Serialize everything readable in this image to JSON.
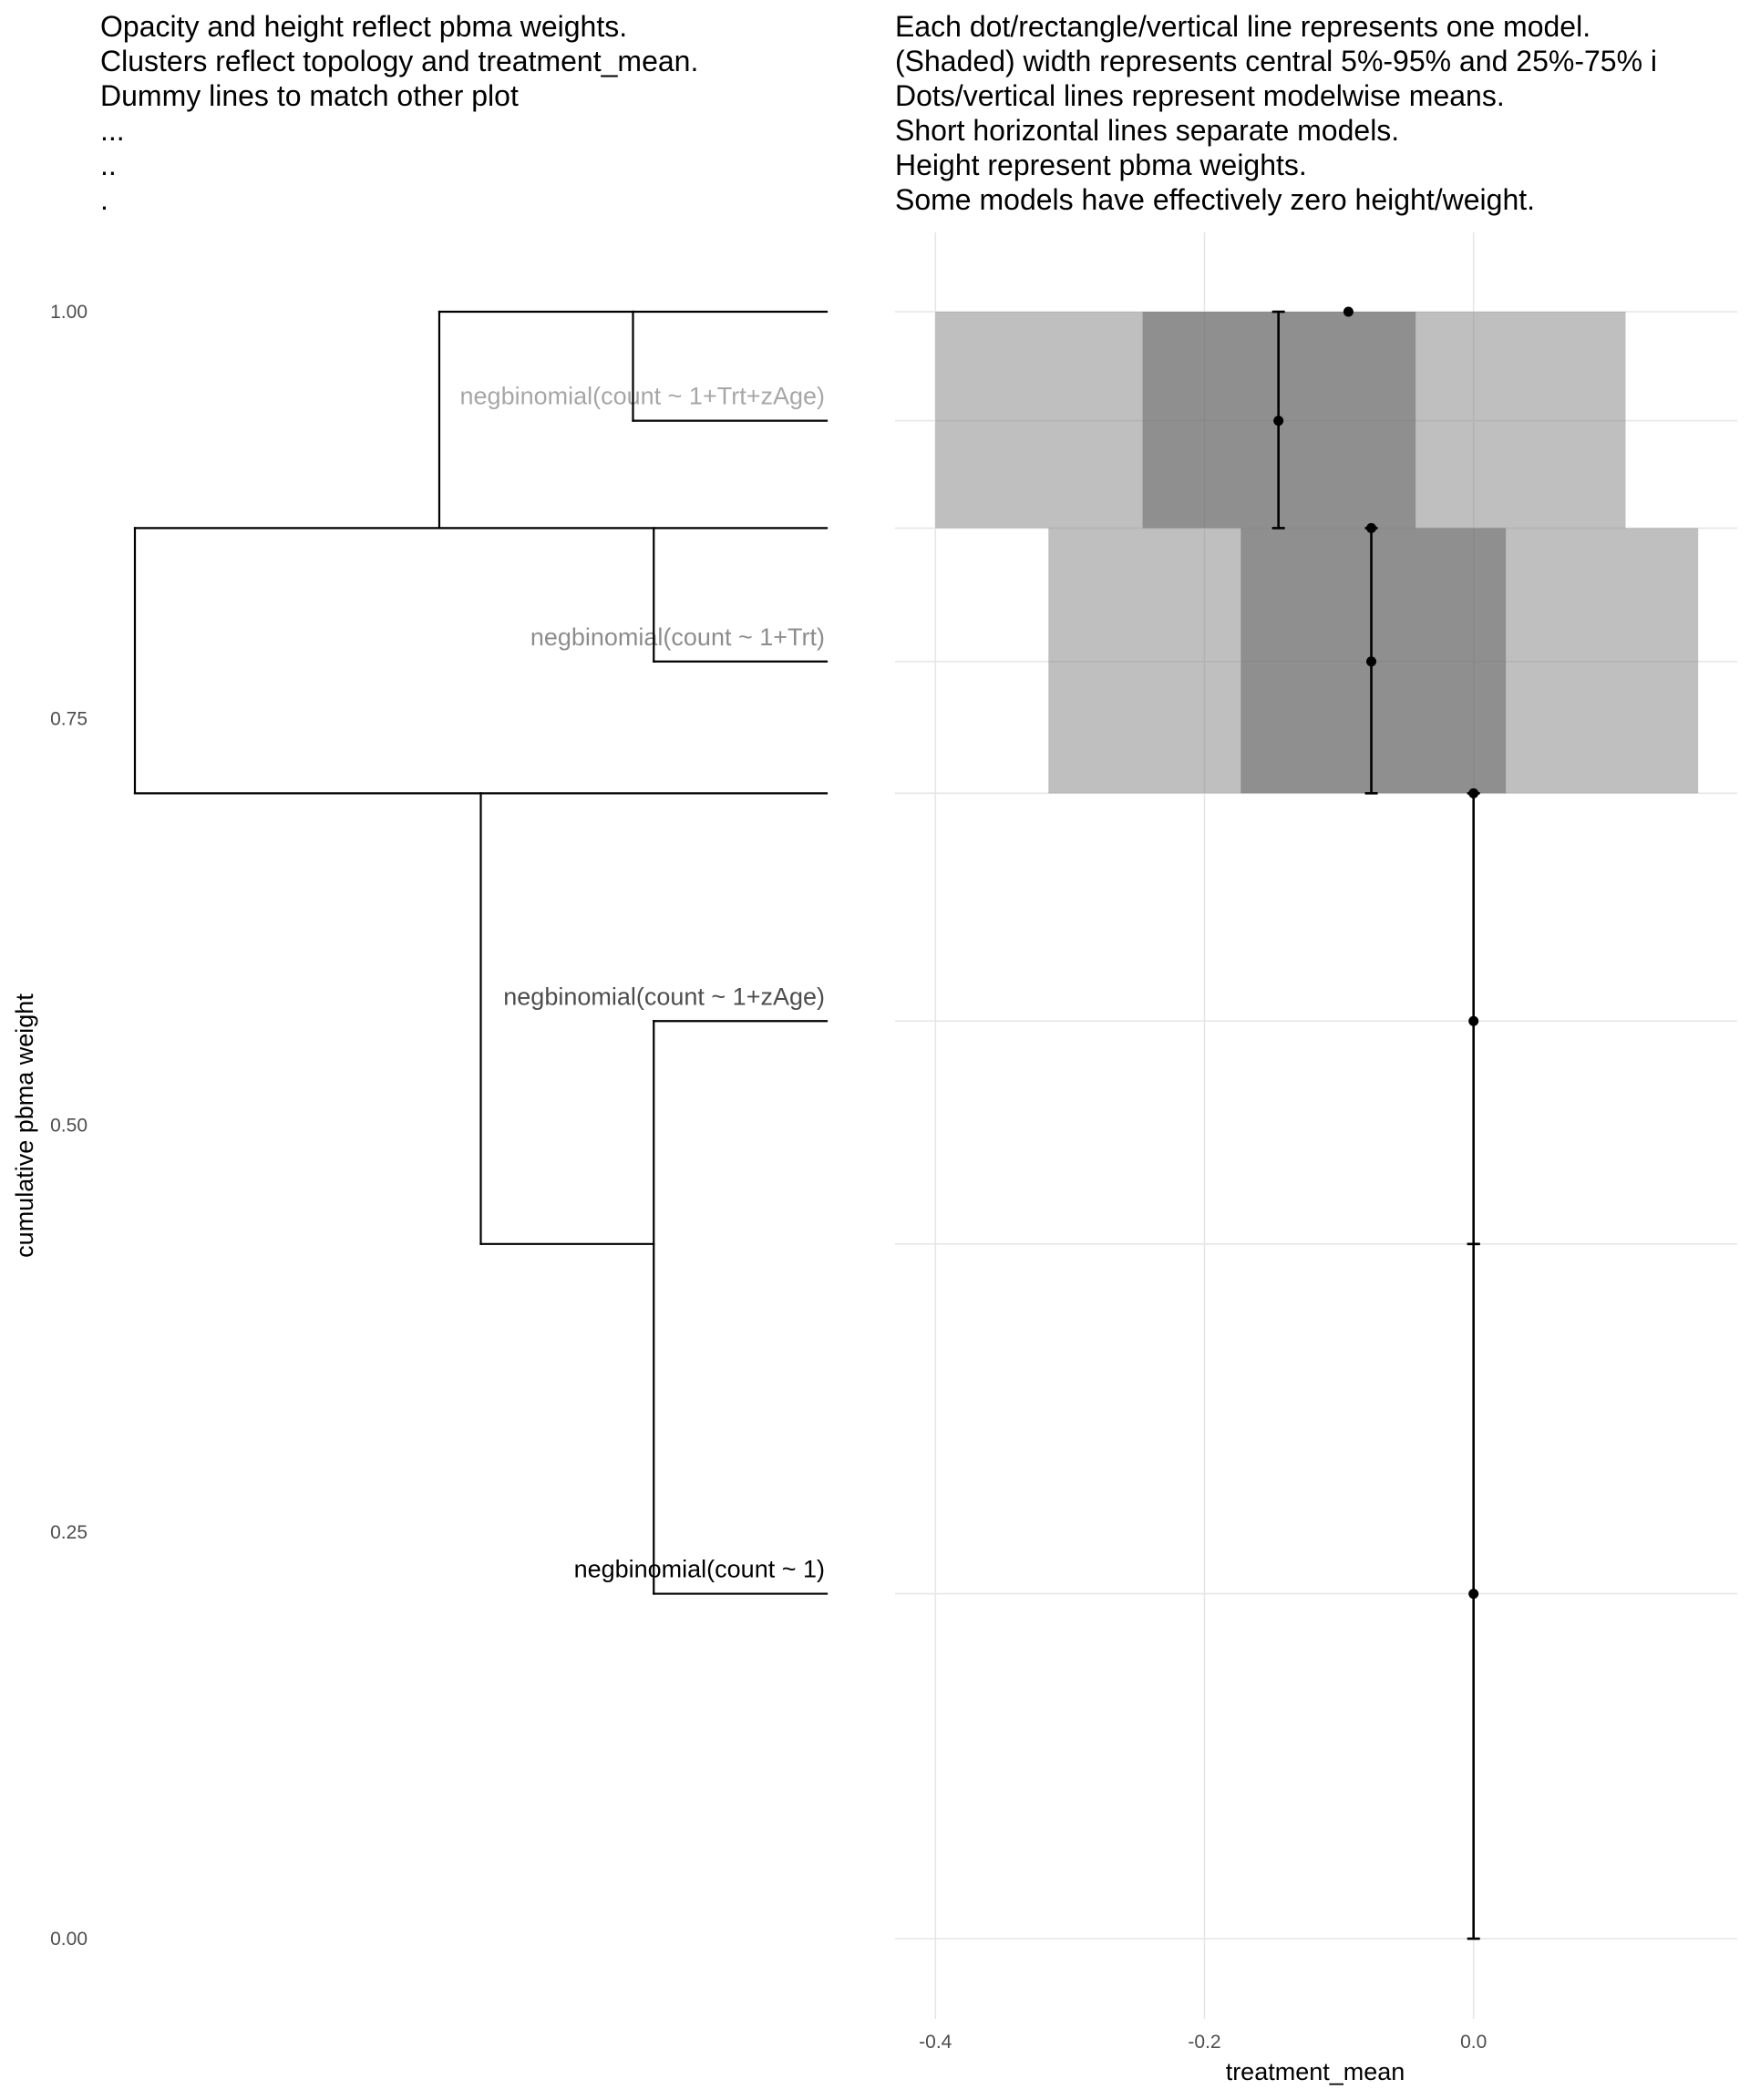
{
  "chart_data": [
    {
      "type": "dendrogram",
      "subtitle_lines": [
        "Opacity and height reflect pbma weights.",
        "Clusters reflect topology and treatment_mean.",
        "Dummy lines to match other plot",
        "...",
        "..",
        "."
      ],
      "ylabel": "cumulative pbma weight",
      "ylim": [
        0,
        1
      ],
      "yticks": [
        {
          "value": 0.0,
          "label": "0.00"
        },
        {
          "value": 0.25,
          "label": "0.25"
        },
        {
          "value": 0.5,
          "label": "0.50"
        },
        {
          "value": 0.75,
          "label": "0.75"
        },
        {
          "value": 1.0,
          "label": "1.00"
        }
      ],
      "leaves": [
        {
          "label": "negbinomial(count ~ 1+Trt+zAge)",
          "y": 0.933,
          "opacity": 0.35
        },
        {
          "label": "negbinomial(count ~ 1+Trt)",
          "y": 0.785,
          "opacity": 0.45
        },
        {
          "label": "negbinomial(count ~ 1+zAge)",
          "y": 0.564,
          "opacity": 0.7
        },
        {
          "label": "negbinomial(count ~ 1)",
          "y": 0.212,
          "opacity": 1.0
        }
      ],
      "links": [
        {
          "depth_from": 0.28,
          "depth_to": 0.0,
          "y": 1.0
        },
        {
          "depth_from": 0.28,
          "depth_to": 0.0,
          "y": 0.933
        },
        {
          "depth_from": 0.28,
          "depth_to": 0.28,
          "y_from": 0.933,
          "y_to": 1.0
        },
        {
          "depth_from": 0.56,
          "depth_to": 0.28,
          "y": 1.0
        },
        {
          "depth_from": 0.56,
          "depth_to": 0.0,
          "y": 0.867
        },
        {
          "depth_from": 0.25,
          "depth_to": 0.0,
          "y": 0.785
        },
        {
          "depth_from": 0.25,
          "depth_to": 0.25,
          "y_from": 0.785,
          "y_to": 0.867
        },
        {
          "depth_from": 0.56,
          "depth_to": 0.56,
          "y_from": 0.867,
          "y_to": 1.0
        },
        {
          "depth_from": 1.0,
          "depth_to": 0.56,
          "y": 0.867
        },
        {
          "depth_from": 1.0,
          "depth_to": 0.0,
          "y": 0.704
        },
        {
          "depth_from": 1.0,
          "depth_to": 1.0,
          "y_from": 0.704,
          "y_to": 0.867
        },
        {
          "depth_from": 0.5,
          "depth_to": 0.5,
          "y_from": 0.427,
          "y_to": 0.704
        },
        {
          "depth_from": 0.5,
          "depth_to": 0.25,
          "y": 0.427
        },
        {
          "depth_from": 0.25,
          "depth_to": 0.25,
          "y_from": 0.212,
          "y_to": 0.564
        },
        {
          "depth_from": 0.25,
          "depth_to": 0.0,
          "y": 0.564
        },
        {
          "depth_from": 0.25,
          "depth_to": 0.0,
          "y": 0.212
        }
      ]
    },
    {
      "type": "interval",
      "subtitle_lines": [
        "Each dot/rectangle/vertical line represents one model.",
        "(Shaded) width represents central 5%-95% and 25%-75% i",
        "Dots/vertical lines represent modelwise means.",
        "Short horizontal lines separate models.",
        "Height represent pbma weights.",
        "Some models have effectively zero height/weight."
      ],
      "xlabel": "treatment_mean",
      "xlim": [
        -0.43,
        0.196
      ],
      "ylim": [
        0,
        1
      ],
      "xticks": [
        {
          "value": -0.4,
          "label": "-0.4"
        },
        {
          "value": -0.2,
          "label": "-0.2"
        },
        {
          "value": 0.0,
          "label": "0.0"
        }
      ],
      "gridlines_y": [
        0.0,
        0.212,
        0.427,
        0.564,
        0.704,
        0.785,
        0.867,
        0.933,
        1.0
      ],
      "models": [
        {
          "y_lo": 0.867,
          "y_hi": 1.0,
          "q05": -0.4,
          "q25": -0.246,
          "q75": -0.043,
          "q95": 0.113,
          "mean": -0.145
        },
        {
          "y_lo": 0.704,
          "y_hi": 0.867,
          "q05": -0.316,
          "q25": -0.173,
          "q75": 0.024,
          "q95": 0.167,
          "mean": -0.076
        },
        {
          "y_lo": 0.427,
          "y_hi": 0.704,
          "mean": 0.0
        },
        {
          "y_lo": 0.0,
          "y_hi": 0.427,
          "mean": 0.0
        }
      ],
      "mean_points": [
        {
          "x": -0.093,
          "y": 1.0
        },
        {
          "x": -0.145,
          "y": 0.933
        },
        {
          "x": -0.076,
          "y": 0.867
        },
        {
          "x": -0.076,
          "y": 0.785
        },
        {
          "x": 0.0,
          "y": 0.704
        },
        {
          "x": 0.0,
          "y": 0.564
        },
        {
          "x": 0.0,
          "y": 0.212
        }
      ]
    }
  ]
}
